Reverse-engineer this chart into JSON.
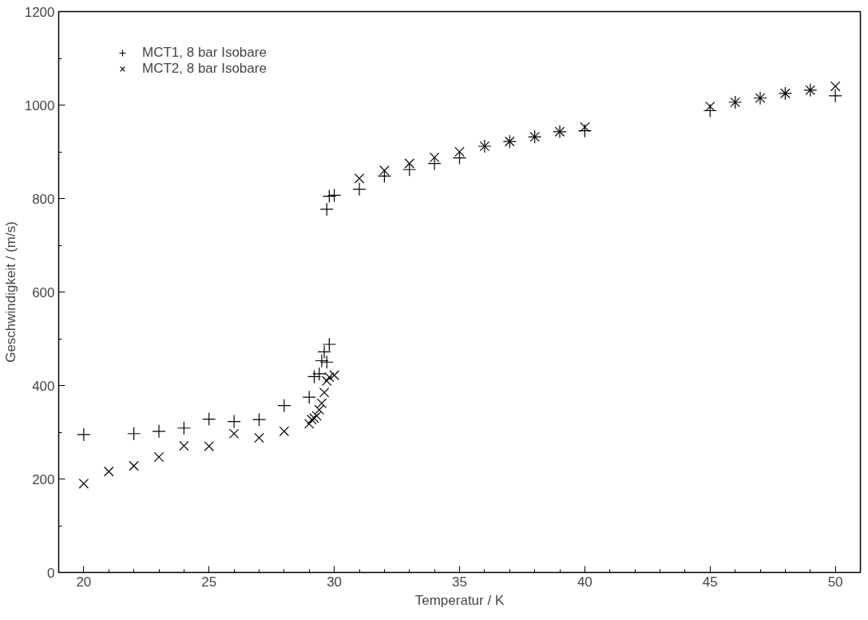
{
  "chart_data": {
    "type": "scatter",
    "xlabel": "Temperatur / K",
    "ylabel": "Geschwindigkeit / (m/s)",
    "xlim": [
      19,
      51
    ],
    "xticks": [
      20,
      25,
      30,
      35,
      40,
      45,
      50
    ],
    "ylim": [
      0,
      1200
    ],
    "yticks": [
      0,
      200,
      400,
      600,
      800,
      1000,
      1200
    ],
    "grid": false,
    "legend": "top left",
    "series": [
      {
        "name": "MCT1, 8 bar Isobare",
        "color": "#000000",
        "marker": "cross",
        "x": [
          20,
          22,
          23,
          24,
          25,
          26,
          27,
          28,
          29,
          29.2,
          29.4,
          29.5,
          29.6,
          29.7,
          29.8,
          29.7,
          29.8,
          30,
          31,
          32,
          33,
          34,
          35,
          36,
          37,
          38,
          39,
          40,
          45,
          46,
          47,
          48,
          49,
          50
        ],
        "values": [
          295,
          297,
          302,
          309,
          328,
          323,
          327,
          357,
          375,
          419,
          425,
          453,
          472,
          450,
          488,
          777,
          805,
          807,
          820,
          848,
          862,
          875,
          887,
          912,
          922,
          932,
          943,
          945,
          988,
          1006,
          1015,
          1025,
          1032,
          1020
        ]
      },
      {
        "name": "MCT2, 8 bar Isobare",
        "color": "#000000",
        "marker": "x",
        "x": [
          20,
          21,
          22,
          23,
          24,
          25,
          26,
          27,
          28,
          29,
          29.1,
          29.2,
          29.3,
          29.4,
          29.5,
          29.6,
          29.7,
          29.8,
          30,
          31,
          32,
          33,
          34,
          35,
          36,
          37,
          38,
          39,
          40,
          45,
          46,
          47,
          48,
          49,
          50
        ],
        "values": [
          190,
          216,
          228,
          247,
          271,
          270,
          297,
          288,
          302,
          318,
          327,
          330,
          335,
          348,
          362,
          385,
          410,
          418,
          422,
          843,
          860,
          875,
          888,
          900,
          912,
          922,
          932,
          943,
          953,
          997,
          1006,
          1015,
          1025,
          1032,
          1040
        ]
      }
    ]
  }
}
